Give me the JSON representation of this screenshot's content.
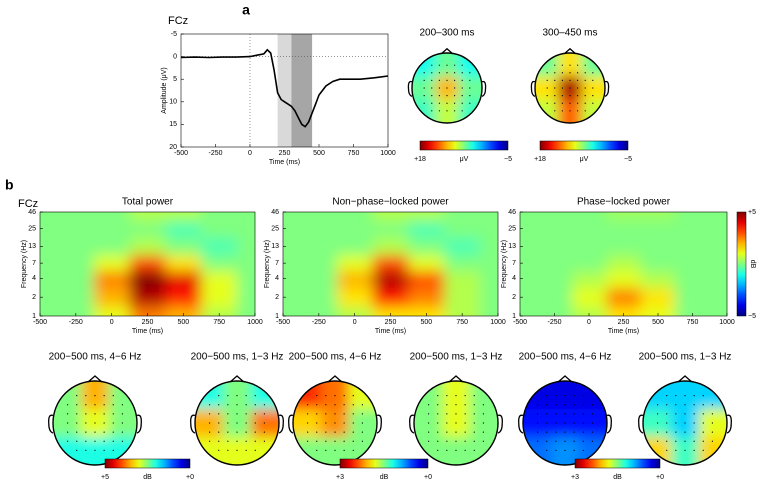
{
  "figure_labels": [
    "a",
    "b"
  ],
  "chart_data": [
    {
      "type": "line",
      "channel": "FCz",
      "xlabel": "Time (ms)",
      "ylabel": "Amplitude (μV)",
      "x": [
        -500,
        -400,
        -300,
        -200,
        -100,
        0,
        50,
        100,
        125,
        150,
        175,
        200,
        225,
        250,
        275,
        300,
        325,
        350,
        375,
        400,
        425,
        450,
        475,
        500,
        550,
        600,
        650,
        700,
        800,
        900,
        1000
      ],
      "series": [
        {
          "color": "#000000",
          "values": [
            0.2,
            0.1,
            0.2,
            0.1,
            0.1,
            0,
            -0.3,
            -0.6,
            -1.5,
            -0.8,
            3,
            8,
            9.5,
            10,
            10.5,
            11,
            12,
            13.5,
            15,
            15.5,
            14.5,
            12.5,
            10.5,
            8.5,
            6.5,
            5.5,
            5,
            5,
            5,
            4.7,
            4.3
          ]
        }
      ],
      "xlim": [
        -500,
        1000
      ],
      "xticks": [
        -500,
        -250,
        0,
        250,
        500,
        750,
        1000
      ],
      "ylim": [
        -5,
        20
      ],
      "yticks": [
        -5,
        0,
        5,
        10,
        15,
        20
      ],
      "y_inverted": true,
      "windows": [
        {
          "start": 200,
          "end": 300,
          "color": "#d9d9d9"
        },
        {
          "start": 300,
          "end": 450,
          "color": "#a6a6a6"
        }
      ],
      "reference_lines": {
        "x": 0,
        "y": 0
      }
    },
    {
      "type": "topomap",
      "title": "200–300 ms",
      "clim": [
        -5,
        18
      ],
      "grid": [
        [
          4,
          6,
          4
        ],
        [
          6,
          11,
          6
        ],
        [
          5,
          8,
          5
        ]
      ],
      "colorbar": {
        "ticks": [
          {
            "value": 18,
            "label": "+18"
          },
          {
            "value": -5,
            "label": "−5"
          }
        ],
        "unit": "μV"
      }
    },
    {
      "type": "topomap",
      "title": "300–450 ms",
      "clim": [
        -5,
        18
      ],
      "grid": [
        [
          6,
          10,
          6
        ],
        [
          10,
          17,
          10
        ],
        [
          8,
          13,
          8
        ]
      ],
      "colorbar": {
        "ticks": [
          {
            "value": 18,
            "label": "+18"
          },
          {
            "value": -5,
            "label": "−5"
          }
        ],
        "unit": "μV"
      }
    },
    {
      "type": "heatmap",
      "title": "Total power",
      "channel": "FCz",
      "xlabel": "Time (ms)",
      "ylabel": "Frequency (Hz)",
      "times": [
        -500,
        -250,
        0,
        250,
        500,
        750,
        1000
      ],
      "freqs": [
        1,
        2,
        4,
        7,
        13,
        25,
        46
      ],
      "z": [
        [
          0,
          0,
          1,
          2.5,
          2,
          0.5,
          0
        ],
        [
          0,
          0,
          2,
          4.5,
          3.5,
          1,
          0
        ],
        [
          0,
          0,
          2.5,
          5,
          4,
          1,
          0
        ],
        [
          0,
          0,
          1,
          3,
          1.5,
          0,
          0
        ],
        [
          0,
          0,
          0,
          0.5,
          0,
          -0.5,
          0
        ],
        [
          0,
          0,
          0,
          0,
          -0.5,
          0,
          0
        ],
        [
          0,
          0,
          0,
          0.5,
          0.5,
          0,
          0
        ]
      ],
      "clim": [
        -5,
        5
      ],
      "xlim": [
        -500,
        1000
      ],
      "xticks": [
        -500,
        -250,
        0,
        250,
        500,
        750,
        1000
      ],
      "ylim": [
        1,
        46
      ],
      "yticks": [
        1,
        2,
        4,
        7,
        13,
        25,
        46
      ],
      "log_y": true
    },
    {
      "type": "heatmap",
      "title": "Non−phase−locked power",
      "xlabel": "Time (ms)",
      "ylabel": "Frequency (Hz)",
      "times": [
        -500,
        -250,
        0,
        250,
        500,
        750,
        1000
      ],
      "freqs": [
        1,
        2,
        4,
        7,
        13,
        25,
        46
      ],
      "z": [
        [
          0,
          0,
          0.5,
          1.5,
          1.5,
          0.5,
          0
        ],
        [
          0,
          0,
          1.5,
          3.5,
          2.5,
          0.5,
          0
        ],
        [
          0,
          0,
          2,
          4.5,
          3,
          0.5,
          0
        ],
        [
          0,
          0,
          1,
          3,
          1,
          0,
          0
        ],
        [
          0,
          0,
          0,
          0.5,
          0,
          -0.5,
          0
        ],
        [
          0,
          0,
          0,
          0,
          -0.5,
          0,
          0
        ],
        [
          0,
          0,
          0,
          0.5,
          0.5,
          0,
          0
        ]
      ],
      "clim": [
        -5,
        5
      ],
      "xlim": [
        -500,
        1000
      ],
      "xticks": [
        -500,
        -250,
        0,
        250,
        500,
        750,
        1000
      ],
      "ylim": [
        1,
        46
      ],
      "yticks": [
        1,
        2,
        4,
        7,
        13,
        25,
        46
      ],
      "log_y": true
    },
    {
      "type": "heatmap",
      "title": "Phase−locked power",
      "xlabel": "Time (ms)",
      "ylabel": "Frequency (Hz)",
      "times": [
        -500,
        -250,
        0,
        250,
        500,
        750,
        1000
      ],
      "freqs": [
        1,
        2,
        4,
        7,
        13,
        25,
        46
      ],
      "z": [
        [
          0,
          0,
          0.5,
          1.5,
          1,
          0,
          0
        ],
        [
          0,
          0,
          1,
          2.5,
          1.5,
          0,
          0
        ],
        [
          0,
          0,
          0.5,
          1,
          0.5,
          0,
          0
        ],
        [
          0,
          0,
          0,
          0.5,
          0,
          0,
          0
        ],
        [
          0,
          0,
          0,
          0,
          0,
          0,
          0
        ],
        [
          0,
          0,
          0,
          0,
          0,
          0,
          0
        ],
        [
          0,
          0,
          0,
          0.3,
          0.3,
          0,
          0
        ]
      ],
      "clim": [
        -5,
        5
      ],
      "xlim": [
        -500,
        1000
      ],
      "xticks": [
        -500,
        -250,
        0,
        250,
        500,
        750,
        1000
      ],
      "ylim": [
        1,
        46
      ],
      "yticks": [
        1,
        2,
        4,
        7,
        13,
        25,
        46
      ],
      "log_y": true,
      "colorbar": {
        "ticks": [
          {
            "value": 5,
            "label": "+5"
          },
          {
            "value": -5,
            "label": "−5"
          }
        ],
        "unit": "dB"
      }
    },
    {
      "type": "topomap",
      "title": "200−500 ms, 4−6 Hz",
      "clim": [
        0,
        5
      ],
      "grid": [
        [
          2.5,
          3.5,
          2.5
        ],
        [
          2.5,
          3,
          2.5
        ],
        [
          2,
          2,
          2
        ]
      ],
      "colorbar": {
        "ticks": [
          {
            "value": 5,
            "label": "+5"
          },
          {
            "value": 0,
            "label": "+0"
          }
        ],
        "unit": "dB"
      }
    },
    {
      "type": "topomap",
      "title": "200−500 ms, 1−3 Hz",
      "clim": [
        0,
        5
      ],
      "grid": [
        [
          2,
          2.5,
          2
        ],
        [
          3.5,
          2.5,
          3.8
        ],
        [
          3,
          3,
          3
        ]
      ]
    },
    {
      "type": "topomap",
      "title": "200−500 ms, 4−6 Hz",
      "clim": [
        0,
        3
      ],
      "grid": [
        [
          2.5,
          2.3,
          1.8
        ],
        [
          2,
          2.2,
          1.5
        ],
        [
          1.5,
          1.5,
          1.5
        ]
      ],
      "colorbar": {
        "ticks": [
          {
            "value": 3,
            "label": "+3"
          },
          {
            "value": 0,
            "label": "+0"
          }
        ],
        "unit": "dB"
      }
    },
    {
      "type": "topomap",
      "title": "200−500 ms, 1−3 Hz",
      "clim": [
        0,
        3
      ],
      "grid": [
        [
          1.5,
          1.8,
          1.5
        ],
        [
          1.5,
          1.8,
          1.5
        ],
        [
          1.5,
          1.5,
          1.5
        ]
      ]
    },
    {
      "type": "topomap",
      "title": "200−500 ms, 4−6 Hz",
      "clim": [
        0,
        3
      ],
      "grid": [
        [
          0.3,
          0.3,
          0.3
        ],
        [
          0.4,
          0.4,
          0.4
        ],
        [
          0.7,
          0.8,
          0.7
        ]
      ],
      "colorbar": {
        "ticks": [
          {
            "value": 3,
            "label": "+3"
          },
          {
            "value": 0,
            "label": "+0"
          }
        ],
        "unit": "dB"
      }
    },
    {
      "type": "topomap",
      "title": "200−500 ms, 1−3 Hz",
      "clim": [
        0,
        3
      ],
      "grid": [
        [
          1,
          1,
          1
        ],
        [
          1.3,
          1,
          1.8
        ],
        [
          2,
          1.3,
          2
        ]
      ]
    }
  ]
}
